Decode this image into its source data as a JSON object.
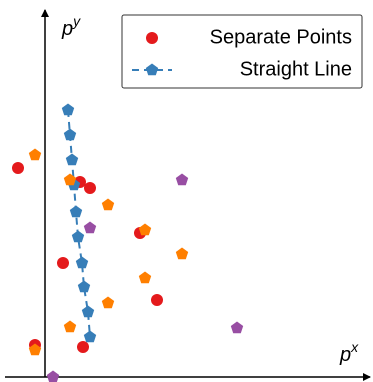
{
  "chart_data": {
    "type": "scatter",
    "xlabel": [
      "p",
      "x"
    ],
    "ylabel": [
      "p",
      "y"
    ],
    "xlim": [
      -45,
      328
    ],
    "ylim": [
      -5,
      377
    ],
    "legend": "upper right",
    "series": [
      {
        "name": "Separate Points",
        "color": "#e41a1c",
        "marker": "circle",
        "line": false,
        "x": [
          -27,
          -10,
          18,
          35,
          45,
          38,
          95,
          112
        ],
        "values": [
          209,
          32,
          114,
          195,
          189,
          30,
          144,
          77
        ]
      },
      {
        "name": "Straight Line",
        "color": "#377eb8",
        "marker": "pentagon",
        "line": true,
        "x": [
          23,
          25,
          27,
          29,
          31,
          33,
          37,
          39,
          43,
          45
        ],
        "values": [
          267,
          242,
          217,
          192,
          165,
          140,
          114,
          90,
          65,
          40
        ]
      },
      {
        "color": "#ff7f00",
        "marker": "pentagon",
        "line": false,
        "x": [
          -10,
          25,
          63,
          100,
          137,
          100,
          63,
          25,
          -10
        ],
        "values": [
          222,
          197,
          172,
          147,
          123,
          99,
          74,
          50,
          27
        ]
      },
      {
        "color": "#984ea3",
        "marker": "pentagon",
        "line": false,
        "x": [
          137,
          45,
          192,
          8
        ],
        "values": [
          197,
          149,
          49,
          0
        ]
      }
    ]
  }
}
